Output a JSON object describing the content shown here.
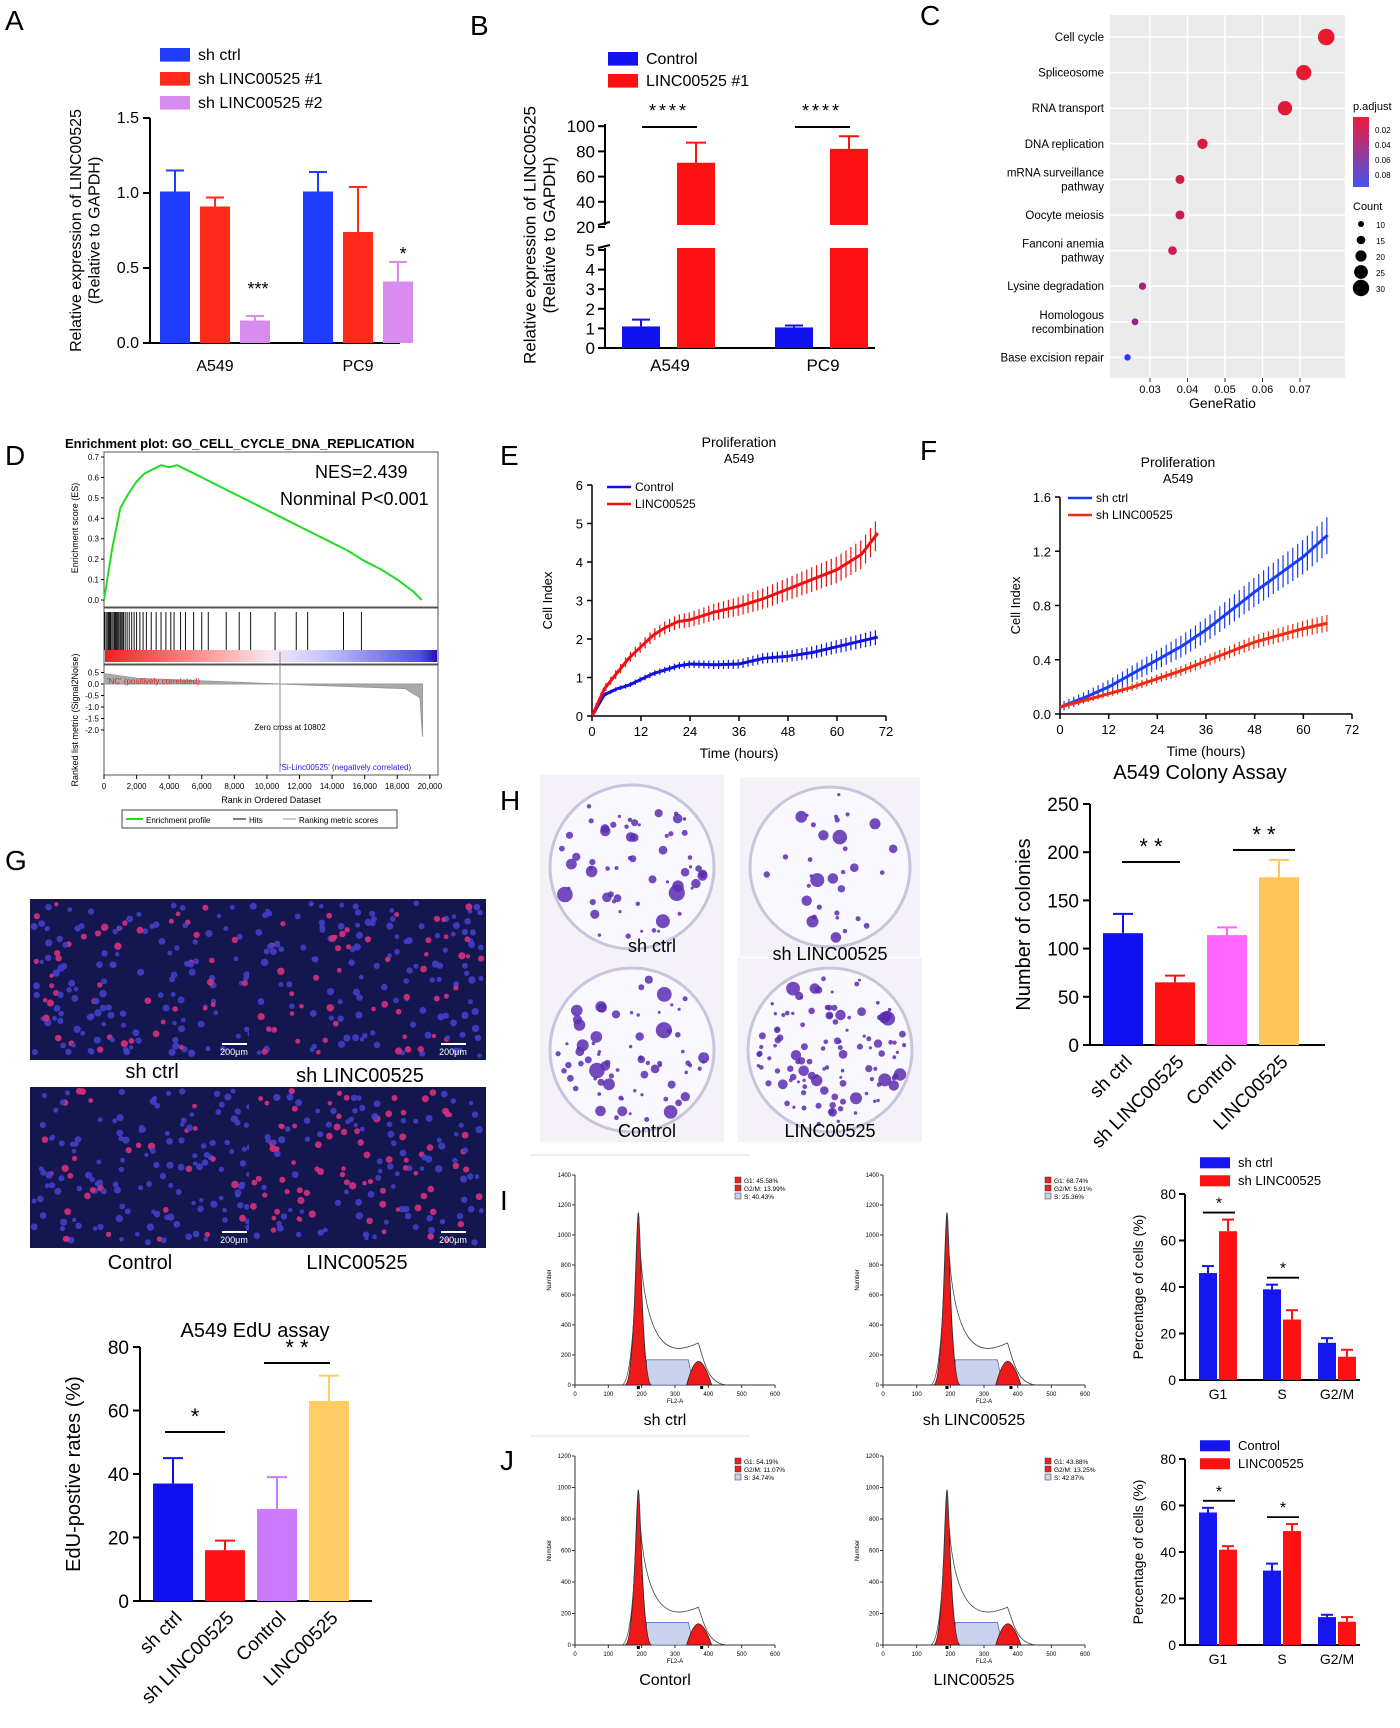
{
  "panel_letters": [
    "A",
    "B",
    "C",
    "D",
    "E",
    "F",
    "G",
    "H",
    "I",
    "J"
  ],
  "chart_data": [
    {
      "id": "A",
      "type": "bar",
      "ylabel": "Relative expression of LINC00525\n(Relative to GAPDH)",
      "ylim": [
        0,
        1.5
      ],
      "yticks": [
        "0.0",
        "0.5",
        "1.0",
        "1.5"
      ],
      "categories": [
        "A549",
        "PC9"
      ],
      "series": [
        {
          "name": "sh ctrl",
          "color": "#1f3cff",
          "values": [
            1.01,
            1.01
          ],
          "err": [
            0.14,
            0.13
          ]
        },
        {
          "name": "sh LINC00525 #1",
          "color": "#ff2a1a",
          "values": [
            0.91,
            0.74
          ],
          "err": [
            0.06,
            0.3
          ]
        },
        {
          "name": "sh LINC00525 #2",
          "color": "#d98cf0",
          "values": [
            0.15,
            0.41
          ],
          "err": [
            0.03,
            0.13
          ]
        }
      ],
      "annotations": [
        "***",
        "*"
      ]
    },
    {
      "id": "B",
      "type": "bar",
      "ylabel": "Relative expression of LINC00525\n(Relative to GAPDH)",
      "yticks_upper": [
        "20",
        "40",
        "60",
        "80",
        "100"
      ],
      "yticks_lower": [
        "0",
        "1",
        "2",
        "3",
        "4",
        "5"
      ],
      "categories": [
        "A549",
        "PC9"
      ],
      "series": [
        {
          "name": "Control",
          "color": "#1212f0",
          "values": [
            1.1,
            1.05
          ],
          "err": [
            0.35,
            0.1
          ]
        },
        {
          "name": "LINC00525 #1",
          "color": "#ff1010",
          "values": [
            71,
            82
          ],
          "err": [
            16,
            10
          ]
        }
      ],
      "annotations": [
        "****",
        "****"
      ]
    },
    {
      "id": "C",
      "type": "scatter",
      "xlabel": "GeneRatio",
      "xticks": [
        "0.03",
        "0.04",
        "0.05",
        "0.06",
        "0.07"
      ],
      "categories": [
        "Cell cycle",
        "Spliceosome",
        "RNA transport",
        "DNA replication",
        "mRNA surveillance pathway",
        "Oocyte meiosis",
        "Fanconi anemia pathway",
        "Lysine degradation",
        "Homologous recombination",
        "Base excision repair"
      ],
      "gene_ratio": [
        0.077,
        0.071,
        0.066,
        0.044,
        0.038,
        0.038,
        0.036,
        0.028,
        0.026,
        0.024
      ],
      "count": [
        32,
        29,
        27,
        18,
        15,
        15,
        14,
        11,
        10,
        9
      ],
      "p_adjust": [
        0.002,
        0.004,
        0.006,
        0.01,
        0.014,
        0.018,
        0.015,
        0.03,
        0.04,
        0.09
      ],
      "legend_p_title": "p.adjust",
      "legend_p_ticks": [
        "0.02",
        "0.04",
        "0.06",
        "0.08"
      ],
      "legend_count_title": "Count",
      "legend_count_ticks": [
        "10",
        "15",
        "20",
        "25",
        "30"
      ]
    },
    {
      "id": "D",
      "type": "line",
      "title": "Enrichment plot: GO_CELL_CYCLE_DNA_REPLICATION",
      "ylabel": "Enrichment score (ES)",
      "ylabel2": "Ranked list metric (Signal2Noise)",
      "xlabel": "Rank in Ordered Dataset",
      "yticks": [
        "0.0",
        "0.1",
        "0.2",
        "0.3",
        "0.4",
        "0.5",
        "0.6",
        "0.7"
      ],
      "yticks2": [
        "0.5",
        "0.0",
        "-0.5",
        "-1.0",
        "-1.5",
        "-2.0"
      ],
      "xticks": [
        "0",
        "2,000",
        "4,000",
        "6,000",
        "8,000",
        "10,000",
        "12,000",
        "14,000",
        "16,000",
        "18,000",
        "20,000"
      ],
      "nes": "NES=2.439",
      "pval": "Nonminal P<0.001",
      "pos_label": "'NC' (positively correlated)",
      "neg_label": "'Si-Linc00525' (negatively correlated)",
      "zero_cross": "Zero cross at 10802",
      "legend": [
        "Enrichment profile",
        "Hits",
        "Ranking metric scores"
      ],
      "x": [
        0,
        500,
        1000,
        1500,
        2000,
        2500,
        3000,
        3500,
        4000,
        4500,
        5000,
        5500,
        6000,
        7000,
        8000,
        9000,
        10000,
        11000,
        12000,
        13000,
        14000,
        15000,
        16000,
        17000,
        18000,
        19000,
        19500
      ],
      "y": [
        0,
        0.25,
        0.45,
        0.52,
        0.58,
        0.62,
        0.64,
        0.66,
        0.65,
        0.66,
        0.64,
        0.62,
        0.6,
        0.56,
        0.52,
        0.48,
        0.44,
        0.4,
        0.36,
        0.32,
        0.28,
        0.24,
        0.19,
        0.15,
        0.1,
        0.04,
        0
      ]
    },
    {
      "id": "E",
      "type": "line",
      "title": "Proliferation",
      "subtitle": "A549",
      "xlabel": "Time (hours)",
      "ylabel": "Cell Index",
      "xlim": [
        0,
        72
      ],
      "ylim": [
        0,
        6
      ],
      "xticks": [
        "0",
        "12",
        "24",
        "36",
        "48",
        "60",
        "72"
      ],
      "yticks": [
        "0",
        "1",
        "2",
        "3",
        "4",
        "5",
        "6"
      ],
      "x": [
        0,
        3,
        6,
        9,
        12,
        15,
        18,
        21,
        24,
        30,
        36,
        42,
        48,
        54,
        60,
        66,
        70
      ],
      "series": [
        {
          "name": "Control",
          "color": "#1010e0",
          "values": [
            0,
            0.55,
            0.7,
            0.8,
            0.95,
            1.1,
            1.2,
            1.3,
            1.35,
            1.33,
            1.35,
            1.5,
            1.55,
            1.65,
            1.8,
            1.95,
            2.05
          ]
        },
        {
          "name": "LINC00525",
          "color": "#ee1010",
          "values": [
            0,
            0.7,
            1.1,
            1.5,
            1.8,
            2.1,
            2.3,
            2.45,
            2.5,
            2.7,
            2.85,
            3.05,
            3.3,
            3.55,
            3.8,
            4.2,
            4.75
          ]
        }
      ]
    },
    {
      "id": "F",
      "type": "line",
      "title": "Proliferation",
      "subtitle": "A549",
      "xlabel": "Time (hours)",
      "ylabel": "Cell Index",
      "xlim": [
        0,
        72
      ],
      "ylim": [
        0,
        1.6
      ],
      "xticks": [
        "0",
        "12",
        "24",
        "36",
        "48",
        "60",
        "72"
      ],
      "yticks": [
        "0.0",
        "0.4",
        "0.8",
        "1.2",
        "1.6"
      ],
      "x": [
        0,
        6,
        12,
        18,
        24,
        30,
        36,
        42,
        48,
        54,
        60,
        66
      ],
      "series": [
        {
          "name": "sh ctrl",
          "color": "#1a3cf0",
          "values": [
            0.05,
            0.12,
            0.2,
            0.3,
            0.4,
            0.5,
            0.62,
            0.76,
            0.9,
            1.03,
            1.16,
            1.32
          ]
        },
        {
          "name": "sh LINC00525",
          "color": "#ee2a10",
          "values": [
            0.05,
            0.1,
            0.15,
            0.2,
            0.26,
            0.32,
            0.39,
            0.46,
            0.53,
            0.58,
            0.63,
            0.67
          ]
        }
      ]
    },
    {
      "id": "H",
      "type": "bar",
      "title": "A549 Colony Assay",
      "ylabel": "Number of colonies",
      "ylim": [
        0,
        250
      ],
      "yticks": [
        "0",
        "50",
        "100",
        "150",
        "200",
        "250"
      ],
      "categories": [
        "sh ctrl",
        "sh LINC00525",
        "Control",
        "LINC00525"
      ],
      "colors": [
        "#1010f0",
        "#ff1010",
        "#ff66ff",
        "#ffc55a"
      ],
      "values": [
        116,
        65,
        114,
        174
      ],
      "err": [
        20,
        7,
        8,
        18
      ],
      "annotations": [
        "* *",
        "* *"
      ]
    },
    {
      "id": "G",
      "type": "bar",
      "title": "A549 EdU assay",
      "ylabel": "EdU-postive rates (%)",
      "ylim": [
        0,
        80
      ],
      "yticks": [
        "0",
        "20",
        "40",
        "60",
        "80"
      ],
      "categories": [
        "sh ctrl",
        "sh LINC00525",
        "Control",
        "LINC00525"
      ],
      "colors": [
        "#1010f0",
        "#ff1010",
        "#cc7aff",
        "#ffcc66"
      ],
      "values": [
        37,
        16,
        29,
        63
      ],
      "err": [
        8,
        3,
        10,
        8
      ],
      "annotations": [
        "*",
        "* *"
      ]
    },
    {
      "id": "I",
      "type": "bar",
      "ylabel": "Percentage of cells (%)",
      "ylim": [
        0,
        80
      ],
      "yticks": [
        "0",
        "20",
        "40",
        "60",
        "80"
      ],
      "categories": [
        "G1",
        "S",
        "G2/M"
      ],
      "series": [
        {
          "name": "sh ctrl",
          "color": "#1616f0",
          "values": [
            46,
            39,
            16
          ],
          "err": [
            3,
            2,
            2
          ]
        },
        {
          "name": "sh LINC00525",
          "color": "#ff1010",
          "values": [
            64,
            26,
            10
          ],
          "err": [
            5,
            4,
            3
          ]
        }
      ],
      "annotations": [
        "*",
        "*"
      ]
    },
    {
      "id": "J",
      "type": "bar",
      "ylabel": "Percentage of cells (%)",
      "ylim": [
        0,
        80
      ],
      "yticks": [
        "0",
        "20",
        "40",
        "60",
        "80"
      ],
      "categories": [
        "G1",
        "S",
        "G2/M"
      ],
      "series": [
        {
          "name": "Control",
          "color": "#1616f0",
          "values": [
            57,
            32,
            12
          ],
          "err": [
            2,
            3,
            1
          ]
        },
        {
          "name": "LINC00525",
          "color": "#ff1010",
          "values": [
            41,
            49,
            10
          ],
          "err": [
            1.5,
            3,
            2
          ]
        }
      ],
      "annotations": [
        "*",
        "*"
      ]
    }
  ],
  "flow_plots": [
    {
      "id": "I1",
      "caption": "sh ctrl",
      "g1": "G1: 45.58%",
      "g2m": "G2/M: 13.99%",
      "s": "S: 40.43%"
    },
    {
      "id": "I2",
      "caption": "sh LINC00525",
      "g1": "G1: 68.74%",
      "g2m": "G2/M: 5.91%",
      "s": "S: 25.36%"
    },
    {
      "id": "J1",
      "caption": "Contorl",
      "g1": "G1: 54.19%",
      "g2m": "G2/M: 11.07%",
      "s": "S: 34.74%"
    },
    {
      "id": "J2",
      "caption": "LINC00525",
      "g1": "G1: 43.88%",
      "g2m": "G2/M: 13.25%",
      "s": "S: 42.87%"
    }
  ],
  "flow_axes": {
    "ylabel": "Number",
    "xlabel": "FL2-A",
    "xticks": [
      "0",
      "100",
      "200",
      "300",
      "400",
      "500",
      "600"
    ]
  },
  "flow_yticks_I": [
    "0",
    "200",
    "400",
    "600",
    "800",
    "1000",
    "1200",
    "1400"
  ],
  "flow_yticks_J": [
    "0",
    "200",
    "400",
    "600",
    "800",
    "1000",
    "1200"
  ],
  "microscopy_G": {
    "captions": [
      "sh ctrl",
      "sh LINC00525",
      "Control",
      "LINC00525"
    ],
    "scale_bar": "200μm"
  },
  "colony_H": {
    "captions": [
      "sh ctrl",
      "sh LINC00525",
      "Control",
      "LINC00525"
    ]
  }
}
